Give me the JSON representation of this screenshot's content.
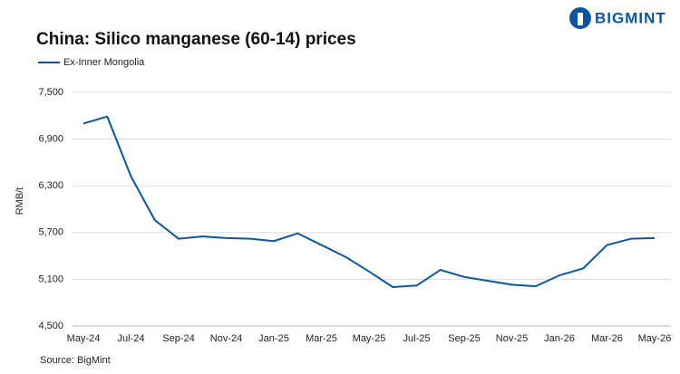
{
  "chart_data": {
    "type": "line",
    "title": "China: Silico manganese (60-14) prices",
    "brand": "BIGMINT",
    "source": "Source: BigMint",
    "y_label": "RMB/t",
    "categories": [
      "May-24",
      null,
      "Jul-24",
      null,
      "Sep-24",
      null,
      "Nov-24",
      null,
      "Jan-25",
      null,
      "Mar-25",
      null,
      "May-25",
      null,
      "Jul-25",
      null,
      "Sep-25",
      null,
      "Nov-25",
      null,
      "Jan-26",
      null,
      "Mar-26",
      null,
      "May-26"
    ],
    "series": [
      {
        "name": "Ex-Inner Mongolia",
        "color": "#0b56a4",
        "values": [
          7100,
          7190,
          6420,
          5860,
          5620,
          5650,
          5630,
          5620,
          5590,
          5690,
          5540,
          5390,
          5200,
          5000,
          5020,
          5220,
          5130,
          5080,
          5030,
          5010,
          5150,
          5240,
          5540,
          5620,
          5630
        ]
      }
    ],
    "ylim": [
      4500,
      7500
    ],
    "yticks": [
      {
        "value": 4500,
        "label": "4,500"
      },
      {
        "value": 5100,
        "label": "5,100"
      },
      {
        "value": 5700,
        "label": "5,700"
      },
      {
        "value": 6300,
        "label": "6,300"
      },
      {
        "value": 6900,
        "label": "6,900"
      },
      {
        "value": 7500,
        "label": "7,500"
      }
    ],
    "grid": true
  }
}
